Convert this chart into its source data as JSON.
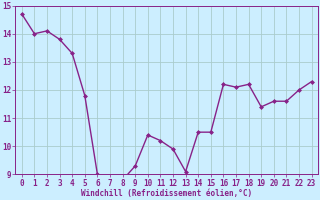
{
  "x": [
    0,
    1,
    2,
    3,
    4,
    5,
    6,
    7,
    8,
    9,
    10,
    11,
    12,
    13,
    14,
    15,
    16,
    17,
    18,
    19,
    20,
    21,
    22,
    23
  ],
  "y": [
    14.7,
    14.0,
    14.1,
    13.8,
    13.3,
    11.8,
    9.0,
    8.9,
    8.8,
    9.3,
    10.4,
    10.2,
    9.9,
    9.1,
    10.5,
    10.5,
    12.2,
    12.1,
    12.2,
    11.4,
    11.6,
    11.6,
    12.0,
    12.3
  ],
  "line_color": "#882288",
  "marker": "D",
  "marker_size": 2.0,
  "bg_color": "#cceeff",
  "grid_color": "#aacccc",
  "ylim": [
    9,
    15
  ],
  "xlim": [
    -0.5,
    23.5
  ],
  "yticks": [
    9,
    10,
    11,
    12,
    13,
    14,
    15
  ],
  "xticks": [
    0,
    1,
    2,
    3,
    4,
    5,
    6,
    7,
    8,
    9,
    10,
    11,
    12,
    13,
    14,
    15,
    16,
    17,
    18,
    19,
    20,
    21,
    22,
    23
  ],
  "xlabel": "Windchill (Refroidissement éolien,°C)",
  "xlabel_fontsize": 5.5,
  "tick_fontsize": 5.5,
  "line_width": 1.0
}
